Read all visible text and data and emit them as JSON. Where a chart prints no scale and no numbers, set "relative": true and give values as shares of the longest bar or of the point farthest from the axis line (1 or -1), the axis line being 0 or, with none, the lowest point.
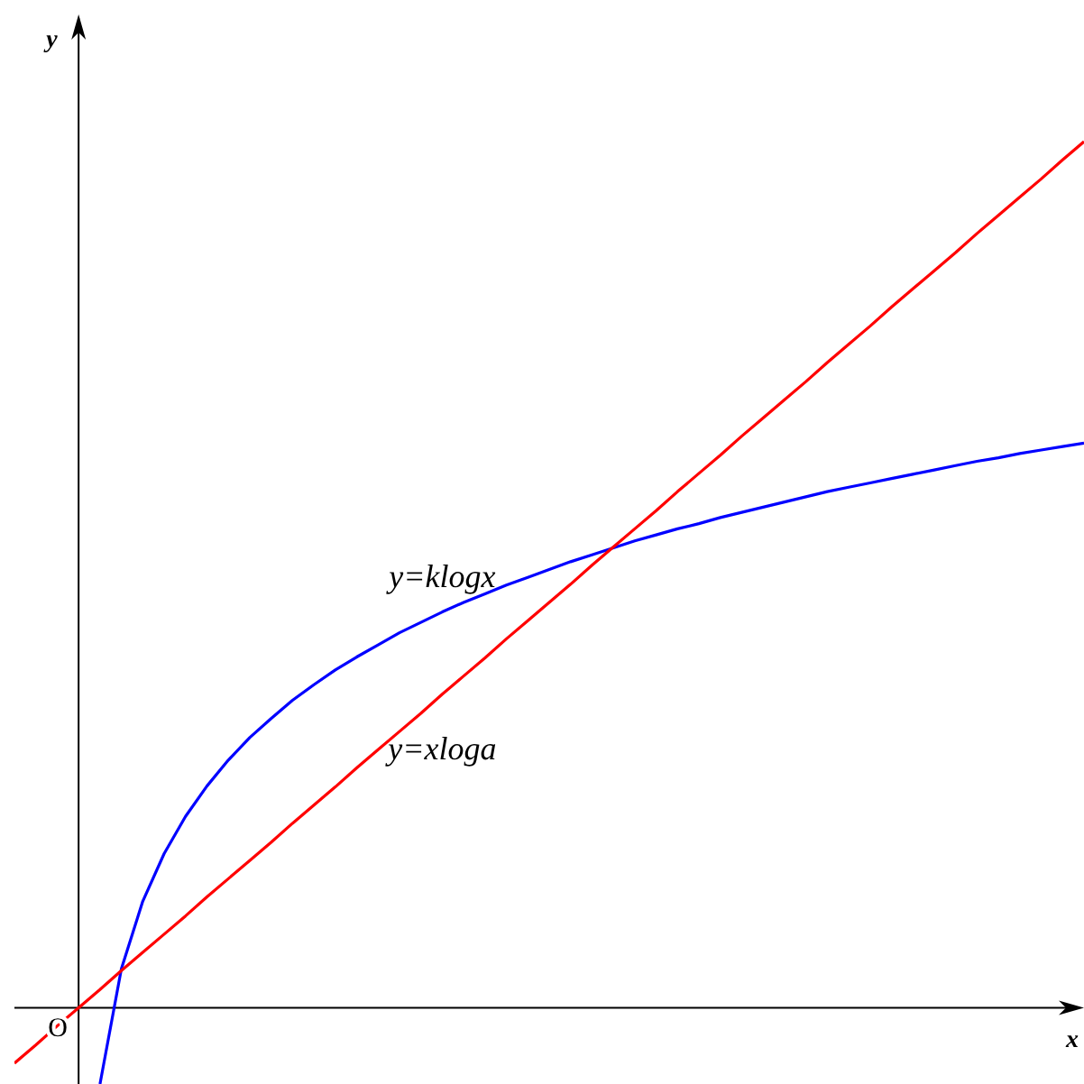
{
  "chart_data": {
    "type": "line",
    "relative": true,
    "xlabel": "x",
    "ylabel": "y",
    "annotations": [
      "O"
    ],
    "categories": [
      null,
      null,
      null,
      null,
      null,
      null,
      null,
      null,
      null,
      null,
      null,
      null,
      null,
      null,
      null,
      null,
      null,
      null,
      null,
      null,
      null,
      null,
      null,
      null,
      null,
      null,
      null,
      null,
      null,
      null,
      null,
      null,
      null,
      null,
      null,
      null,
      null,
      null,
      null,
      null,
      null,
      null,
      null,
      null,
      null,
      null,
      null,
      null,
      null,
      null,
      null
    ],
    "series": [
      {
        "name": "y=klogx",
        "color": "#0000ff",
        "values": [
          null,
          null,
          null,
          null,
          -0.088,
          0.045,
          0.123,
          0.178,
          0.221,
          0.256,
          0.286,
          0.312,
          0.334,
          0.355,
          0.373,
          0.39,
          0.405,
          0.419,
          0.433,
          0.445,
          0.457,
          0.468,
          0.478,
          0.488,
          0.497,
          0.506,
          0.515,
          0.523,
          0.531,
          0.539,
          0.546,
          0.553,
          0.559,
          0.566,
          0.572,
          0.578,
          0.584,
          0.59,
          0.596,
          0.601,
          0.606,
          0.611,
          0.616,
          0.621,
          0.626,
          0.631,
          0.635,
          0.64,
          0.644,
          0.648,
          0.652
        ]
      },
      {
        "name": "y=xloga",
        "color": "#ff0000",
        "values": [
          -0.064,
          -0.043,
          -0.021,
          0,
          0.021,
          0.043,
          0.064,
          0.085,
          0.106,
          0.128,
          0.149,
          0.17,
          0.191,
          0.213,
          0.234,
          0.255,
          0.277,
          0.298,
          0.319,
          0.34,
          0.362,
          0.383,
          0.404,
          0.426,
          0.447,
          0.468,
          0.489,
          0.511,
          0.532,
          0.553,
          0.574,
          0.596,
          0.617,
          0.638,
          0.66,
          0.681,
          0.702,
          0.723,
          0.745,
          0.766,
          0.787,
          0.809,
          0.83,
          0.851,
          0.872,
          0.894,
          0.915,
          0.936,
          0.957,
          0.979,
          1.0
        ]
      }
    ],
    "marker": "none",
    "line_style": "solid"
  }
}
